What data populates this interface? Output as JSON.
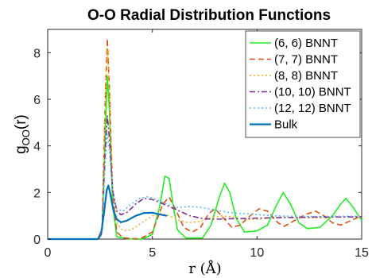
{
  "chart_data": {
    "type": "line",
    "title": "O-O Radial Distribution Functions",
    "xlabel": "r (Å)",
    "ylabel_main": "g",
    "ylabel_sub": "OO",
    "ylabel_tail": "(r)",
    "xlim": [
      0,
      15
    ],
    "ylim": [
      0,
      9
    ],
    "xticks": [
      0,
      5,
      10,
      15
    ],
    "yticks": [
      0,
      2,
      4,
      6,
      8
    ],
    "grid": false,
    "legend_position": "top-right",
    "series": [
      {
        "name": "(6, 6) BNNT",
        "color": "#22ee22",
        "dash": "solid",
        "points": [
          [
            0,
            0
          ],
          [
            2.4,
            0
          ],
          [
            2.6,
            0.4
          ],
          [
            2.75,
            4.5
          ],
          [
            2.85,
            7.0
          ],
          [
            2.95,
            5.5
          ],
          [
            3.1,
            1.5
          ],
          [
            3.3,
            0.1
          ],
          [
            4.0,
            0
          ],
          [
            4.5,
            0
          ],
          [
            5.0,
            0.2
          ],
          [
            5.35,
            1.4
          ],
          [
            5.6,
            2.7
          ],
          [
            5.8,
            2.6
          ],
          [
            6.0,
            1.4
          ],
          [
            6.2,
            0.4
          ],
          [
            6.6,
            0.05
          ],
          [
            7.4,
            0.05
          ],
          [
            7.8,
            0.6
          ],
          [
            8.2,
            1.8
          ],
          [
            8.45,
            2.4
          ],
          [
            8.7,
            2.0
          ],
          [
            9.0,
            0.9
          ],
          [
            9.4,
            0.3
          ],
          [
            10.0,
            0.35
          ],
          [
            10.5,
            0.6
          ],
          [
            10.9,
            1.4
          ],
          [
            11.25,
            2.0
          ],
          [
            11.6,
            1.5
          ],
          [
            12.0,
            0.7
          ],
          [
            12.4,
            0.45
          ],
          [
            13.0,
            0.5
          ],
          [
            13.6,
            1.0
          ],
          [
            14.0,
            1.5
          ],
          [
            14.25,
            1.75
          ],
          [
            14.6,
            1.35
          ],
          [
            15.0,
            0.8
          ]
        ]
      },
      {
        "name": "(7, 7) BNNT",
        "color": "#d95319",
        "dash": "dashed",
        "points": [
          [
            0,
            0
          ],
          [
            2.4,
            0
          ],
          [
            2.6,
            0.5
          ],
          [
            2.75,
            6.0
          ],
          [
            2.85,
            8.6
          ],
          [
            2.95,
            6.5
          ],
          [
            3.1,
            2.0
          ],
          [
            3.3,
            0.3
          ],
          [
            3.6,
            0.05
          ],
          [
            4.4,
            0
          ],
          [
            5.0,
            0.3
          ],
          [
            5.5,
            1.5
          ],
          [
            5.8,
            1.8
          ],
          [
            6.1,
            1.3
          ],
          [
            6.5,
            0.5
          ],
          [
            6.9,
            0.3
          ],
          [
            7.3,
            0.5
          ],
          [
            7.7,
            1.1
          ],
          [
            8.0,
            1.3
          ],
          [
            8.4,
            0.9
          ],
          [
            8.8,
            0.5
          ],
          [
            9.2,
            0.6
          ],
          [
            9.6,
            0.95
          ],
          [
            10.1,
            1.3
          ],
          [
            10.5,
            1.2
          ],
          [
            11.0,
            0.7
          ],
          [
            11.3,
            0.55
          ],
          [
            11.7,
            0.75
          ],
          [
            12.3,
            1.05
          ],
          [
            12.8,
            1.2
          ],
          [
            13.2,
            1.0
          ],
          [
            13.6,
            0.7
          ],
          [
            14.0,
            0.6
          ],
          [
            14.5,
            0.8
          ],
          [
            15.0,
            1.0
          ]
        ]
      },
      {
        "name": "(8, 8) BNNT",
        "color": "#edb120",
        "dash": "dotted",
        "points": [
          [
            0,
            0
          ],
          [
            2.4,
            0
          ],
          [
            2.6,
            0.5
          ],
          [
            2.75,
            5.8
          ],
          [
            2.85,
            8.2
          ],
          [
            2.95,
            6.3
          ],
          [
            3.1,
            2.3
          ],
          [
            3.3,
            0.7
          ],
          [
            3.6,
            0.35
          ],
          [
            4.0,
            0.4
          ],
          [
            4.5,
            0.7
          ],
          [
            5.0,
            1.0
          ],
          [
            5.4,
            1.1
          ],
          [
            5.8,
            1.0
          ],
          [
            6.3,
            0.8
          ],
          [
            6.7,
            0.7
          ],
          [
            7.2,
            0.75
          ],
          [
            7.8,
            0.9
          ],
          [
            8.3,
            1.0
          ],
          [
            8.8,
            0.95
          ],
          [
            9.4,
            0.85
          ],
          [
            10.0,
            0.85
          ],
          [
            10.6,
            0.9
          ],
          [
            11.2,
            0.95
          ],
          [
            12.0,
            0.92
          ],
          [
            12.8,
            0.9
          ],
          [
            13.6,
            0.93
          ],
          [
            14.4,
            0.95
          ],
          [
            15.0,
            0.95
          ]
        ]
      },
      {
        "name": "(10, 10) BNNT",
        "color": "#7e2f8e",
        "dash": "dashdot",
        "points": [
          [
            0,
            0
          ],
          [
            2.4,
            0
          ],
          [
            2.6,
            0.4
          ],
          [
            2.75,
            3.8
          ],
          [
            2.85,
            5.3
          ],
          [
            2.95,
            4.3
          ],
          [
            3.1,
            2.1
          ],
          [
            3.3,
            1.2
          ],
          [
            3.5,
            1.05
          ],
          [
            3.8,
            1.15
          ],
          [
            4.2,
            1.5
          ],
          [
            4.6,
            1.75
          ],
          [
            5.0,
            1.7
          ],
          [
            5.4,
            1.55
          ],
          [
            5.8,
            1.4
          ],
          [
            6.3,
            1.2
          ],
          [
            6.8,
            1.0
          ],
          [
            7.4,
            0.88
          ],
          [
            8.0,
            0.85
          ],
          [
            8.6,
            0.87
          ],
          [
            9.2,
            0.88
          ],
          [
            10.0,
            0.9
          ],
          [
            11.0,
            0.92
          ],
          [
            12.0,
            0.93
          ],
          [
            13.0,
            0.95
          ],
          [
            14.0,
            0.95
          ],
          [
            15.0,
            0.96
          ]
        ]
      },
      {
        "name": "(12, 12) BNNT",
        "color": "#4dbeee",
        "dash": "dotted",
        "points": [
          [
            0,
            0
          ],
          [
            2.4,
            0
          ],
          [
            2.6,
            0.4
          ],
          [
            2.75,
            3.3
          ],
          [
            2.85,
            4.5
          ],
          [
            2.95,
            3.8
          ],
          [
            3.1,
            2.0
          ],
          [
            3.3,
            1.3
          ],
          [
            3.6,
            1.2
          ],
          [
            4.0,
            1.5
          ],
          [
            4.4,
            1.75
          ],
          [
            4.8,
            1.82
          ],
          [
            5.2,
            1.7
          ],
          [
            5.7,
            1.5
          ],
          [
            6.2,
            1.35
          ],
          [
            6.8,
            1.4
          ],
          [
            7.4,
            1.35
          ],
          [
            8.0,
            1.25
          ],
          [
            8.6,
            1.15
          ],
          [
            9.2,
            1.1
          ],
          [
            10.0,
            1.05
          ],
          [
            10.8,
            1.0
          ],
          [
            11.6,
            0.98
          ],
          [
            12.4,
            0.97
          ],
          [
            13.2,
            0.97
          ],
          [
            14.0,
            0.98
          ],
          [
            15.0,
            0.98
          ]
        ]
      },
      {
        "name": "Bulk",
        "color": "#0072bd",
        "dash": "solid",
        "points": [
          [
            0,
            0
          ],
          [
            2.4,
            0
          ],
          [
            2.55,
            0.2
          ],
          [
            2.7,
            1.2
          ],
          [
            2.82,
            2.1
          ],
          [
            2.9,
            2.3
          ],
          [
            3.0,
            1.9
          ],
          [
            3.15,
            1.2
          ],
          [
            3.3,
            0.85
          ],
          [
            3.5,
            0.72
          ],
          [
            3.8,
            0.8
          ],
          [
            4.2,
            1.0
          ],
          [
            4.6,
            1.12
          ],
          [
            5.0,
            1.13
          ],
          [
            5.4,
            1.05
          ],
          [
            5.7,
            1.0
          ]
        ]
      }
    ]
  }
}
